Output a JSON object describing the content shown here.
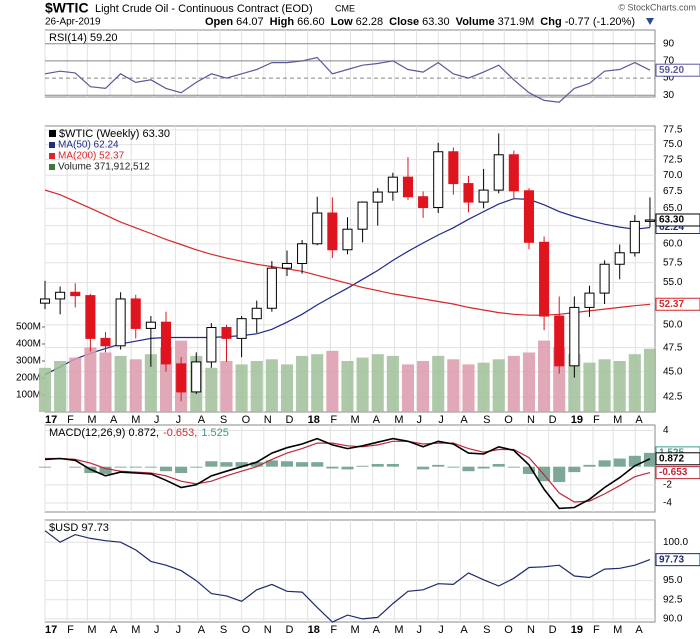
{
  "header": {
    "symbol": "$WTIC",
    "name": "Light Crude Oil - Continuous Contract (EOD)",
    "exchange": "CME",
    "date": "26-Apr-2019",
    "quote": [
      {
        "label": "Open",
        "value": "64.07"
      },
      {
        "label": "High",
        "value": "66.60"
      },
      {
        "label": "Low",
        "value": "62.28"
      },
      {
        "label": "Close",
        "value": "63.30"
      },
      {
        "label": "Volume",
        "value": "371.9M"
      },
      {
        "label": "Chg",
        "value": "-0.77 (-1.20%)"
      }
    ],
    "credit": "© StockCharts.com"
  },
  "chart_data": [
    {
      "type": "line",
      "legend": [
        {
          "text": "RSI(14) 59.20",
          "color": "#000000"
        }
      ],
      "x": [
        0,
        3,
        6,
        9,
        12,
        15,
        18,
        21,
        24,
        27,
        30,
        33,
        36,
        39,
        42,
        45,
        48,
        51,
        54,
        57,
        60,
        63,
        66,
        69,
        72,
        75,
        78,
        81,
        84,
        87,
        90,
        93,
        96,
        99,
        102,
        105,
        108,
        111,
        114,
        117,
        120
      ],
      "xlim": [
        0,
        121
      ],
      "ylim": [
        28,
        106
      ],
      "yticks": [
        90,
        70,
        50,
        30
      ],
      "series": [
        {
          "name": "RSI(14)",
          "color": "#5a5a9a",
          "last_label": "59.20",
          "values": [
            55,
            58,
            56,
            40,
            38,
            55,
            45,
            48,
            38,
            33,
            45,
            55,
            50,
            55,
            60,
            68,
            68,
            70,
            74,
            55,
            60,
            65,
            67,
            70,
            60,
            57,
            68,
            55,
            50,
            57,
            65,
            48,
            33,
            24,
            22,
            38,
            44,
            58,
            60,
            68,
            59.2
          ]
        }
      ]
    },
    {
      "type": "candlestick",
      "log": true,
      "x": [
        0,
        3,
        6,
        9,
        12,
        15,
        18,
        21,
        24,
        27,
        30,
        33,
        36,
        39,
        42,
        45,
        48,
        51,
        54,
        57,
        60,
        63,
        66,
        69,
        72,
        75,
        78,
        81,
        84,
        87,
        90,
        93,
        96,
        99,
        102,
        105,
        108,
        111,
        114,
        117,
        120
      ],
      "xlim": [
        0,
        121
      ],
      "ylim": [
        41.1,
        78.2
      ],
      "yticks": [
        42.5,
        {
          "value": 45,
          "label": "45.0"
        },
        47.5,
        {
          "value": 50,
          "label": "50.0"
        },
        52.5,
        {
          "value": 55,
          "label": "55.0"
        },
        57.5,
        {
          "value": 60,
          "label": "60.0"
        },
        62.5,
        {
          "value": 65,
          "label": "65.0"
        },
        67.5,
        {
          "value": 70,
          "label": "70.0"
        },
        72.5,
        {
          "value": 75,
          "label": "75.0"
        },
        77.5
      ],
      "y2lim": [
        0,
        1682000000
      ],
      "y2ticks": [
        {
          "value": 100000000,
          "label": "100M"
        },
        {
          "value": 200000000,
          "label": "200M"
        },
        {
          "value": 300000000,
          "label": "300M"
        },
        {
          "value": 400000000,
          "label": "400M"
        },
        {
          "value": 500000000,
          "label": "500M"
        }
      ],
      "xticks": [
        {
          "value": 0,
          "label": "17"
        },
        {
          "value": 4.4,
          "label": "F"
        },
        {
          "value": 8.4,
          "label": "M"
        },
        {
          "value": 12.9,
          "label": "A"
        },
        {
          "value": 17.1,
          "label": "M"
        },
        {
          "value": 21.6,
          "label": "J"
        },
        {
          "value": 25.9,
          "label": "J"
        },
        {
          "value": 30.3,
          "label": "A"
        },
        {
          "value": 34.7,
          "label": "S"
        },
        {
          "value": 39,
          "label": "O"
        },
        {
          "value": 43.4,
          "label": "N"
        },
        {
          "value": 47.7,
          "label": "D"
        },
        {
          "value": 52.1,
          "label": "18"
        },
        {
          "value": 56.6,
          "label": "F"
        },
        {
          "value": 60.6,
          "label": "M"
        },
        {
          "value": 65,
          "label": "A"
        },
        {
          "value": 69.3,
          "label": "M"
        },
        {
          "value": 73.7,
          "label": "J"
        },
        {
          "value": 78,
          "label": "J"
        },
        {
          "value": 82.4,
          "label": "A"
        },
        {
          "value": 86.9,
          "label": "S"
        },
        {
          "value": 91.1,
          "label": "O"
        },
        {
          "value": 95.6,
          "label": "N"
        },
        {
          "value": 99.9,
          "label": "D"
        },
        {
          "value": 104.3,
          "label": "19"
        },
        {
          "value": 108.7,
          "label": "F"
        },
        {
          "value": 112.7,
          "label": "M"
        },
        {
          "value": 117.1,
          "label": "A"
        }
      ],
      "candles": {
        "name": "$WTIC (Weekly) 63.30",
        "up_color": "#000000",
        "down_color": "#e0141e",
        "last_label": "63.30",
        "open": [
          52.5,
          53.0,
          53.8,
          53.4,
          48.5,
          47.7,
          53.0,
          49.6,
          50.3,
          45.8,
          43.0,
          46.0,
          49.7,
          48.5,
          50.7,
          51.9,
          56.8,
          57.4,
          60.0,
          64.3,
          59.2,
          62.0,
          65.9,
          67.4,
          69.7,
          66.7,
          65.1,
          73.8,
          68.7,
          65.9,
          67.7,
          73.3,
          67.6,
          60.2,
          51.0,
          45.6,
          52.0,
          53.7,
          57.3,
          58.8,
          63.1
        ],
        "high": [
          55.2,
          54.5,
          54.9,
          53.6,
          49.2,
          53.8,
          53.5,
          51.0,
          51.5,
          46.5,
          47.0,
          50.2,
          50.0,
          51.0,
          52.8,
          57.7,
          59.1,
          60.5,
          66.7,
          66.6,
          63.7,
          66.0,
          68.0,
          70.4,
          72.9,
          67.5,
          75.3,
          74.5,
          69.9,
          71.0,
          76.9,
          74.0,
          68.0,
          61.0,
          53.3,
          53.3,
          54.6,
          57.8,
          59.9,
          64.0,
          66.6
        ],
        "low": [
          51.8,
          51.2,
          52.0,
          47.1,
          47.0,
          47.3,
          48.5,
          45.5,
          45.0,
          42.1,
          42.8,
          45.4,
          46.0,
          46.5,
          49.1,
          51.5,
          55.8,
          56.1,
          59.8,
          58.1,
          58.6,
          60.2,
          62.5,
          66.1,
          66.2,
          63.6,
          64.3,
          67.0,
          64.4,
          65.0,
          67.2,
          66.3,
          59.3,
          49.4,
          44.8,
          44.4,
          50.9,
          52.4,
          55.4,
          58.3,
          62.3
        ],
        "close": [
          53.0,
          53.8,
          53.4,
          48.5,
          47.7,
          53.0,
          49.6,
          50.3,
          45.8,
          43.0,
          46.0,
          49.7,
          48.5,
          50.7,
          51.9,
          56.8,
          57.4,
          60.0,
          64.3,
          59.2,
          62.0,
          65.9,
          67.4,
          69.7,
          66.7,
          65.1,
          73.8,
          68.7,
          65.9,
          67.7,
          73.3,
          67.6,
          60.2,
          51.0,
          45.6,
          52.0,
          53.7,
          57.3,
          58.8,
          63.1,
          63.3
        ]
      },
      "series": [
        {
          "name": "MA(50) 62.24",
          "color": "#1f2a8a",
          "last_label": "62.24",
          "values": [
            44.7,
            45.5,
            46.3,
            46.9,
            47.4,
            47.9,
            48.2,
            48.5,
            48.6,
            48.6,
            48.6,
            48.6,
            48.7,
            48.8,
            49.0,
            49.5,
            50.3,
            51.2,
            52.3,
            53.3,
            54.3,
            55.4,
            56.5,
            57.8,
            59.0,
            60.1,
            61.2,
            62.2,
            63.4,
            64.5,
            65.6,
            66.4,
            66.3,
            65.5,
            64.5,
            63.8,
            63.2,
            62.7,
            62.3,
            62.0,
            62.24
          ]
        },
        {
          "name": "MA(200) 52.37",
          "color": "#d8262a",
          "last_label": "52.37",
          "values": [
            67.7,
            67.0,
            66.0,
            65.0,
            64.0,
            63.0,
            62.2,
            61.4,
            60.6,
            59.9,
            59.2,
            58.6,
            58.1,
            57.7,
            57.3,
            57.0,
            56.7,
            56.4,
            55.9,
            55.4,
            54.9,
            54.4,
            54.0,
            53.6,
            53.3,
            53.0,
            52.7,
            52.4,
            52.0,
            51.7,
            51.4,
            51.2,
            51.1,
            51.1,
            51.2,
            51.4,
            51.6,
            51.8,
            52.0,
            52.2,
            52.37
          ]
        },
        {
          "name": "Volume 371,912,512",
          "color": "#3a7a3a",
          "style": "bar",
          "axis": "y2",
          "up_color": "#9fbf98",
          "down_color": "#dc9aab",
          "values": [
            260000000,
            300000000,
            320000000,
            380000000,
            350000000,
            330000000,
            310000000,
            340000000,
            380000000,
            420000000,
            330000000,
            260000000,
            300000000,
            280000000,
            300000000,
            310000000,
            280000000,
            330000000,
            340000000,
            360000000,
            300000000,
            320000000,
            340000000,
            330000000,
            280000000,
            300000000,
            330000000,
            310000000,
            280000000,
            290000000,
            310000000,
            330000000,
            350000000,
            420000000,
            380000000,
            340000000,
            290000000,
            310000000,
            300000000,
            340000000,
            371912512
          ]
        }
      ]
    },
    {
      "type": "line",
      "legend": [
        {
          "text": "MACD(12,26,9) 0.872,",
          "color": "#000000"
        },
        {
          "text": "-0.653,",
          "color": "#d8262a"
        },
        {
          "text": "1.525",
          "color": "#3f9a8a"
        }
      ],
      "x": [
        0,
        3,
        6,
        9,
        12,
        15,
        18,
        21,
        24,
        27,
        30,
        33,
        36,
        39,
        42,
        45,
        48,
        51,
        54,
        57,
        60,
        63,
        66,
        69,
        72,
        75,
        78,
        81,
        84,
        87,
        90,
        93,
        96,
        99,
        102,
        105,
        108,
        111,
        114,
        117,
        120
      ],
      "xlim": [
        0,
        121
      ],
      "ylim": [
        -5,
        4.6
      ],
      "yticks": [
        4,
        -2,
        -4
      ],
      "series": [
        {
          "name": "Histogram",
          "color": "#6f9f8c",
          "style": "bar",
          "last_label": "1.525",
          "values": [
            -0.1,
            0,
            -0.1,
            -0.7,
            -0.8,
            -0.1,
            -0.1,
            -0.1,
            -0.5,
            -0.7,
            -0.1,
            0.6,
            0.5,
            0.5,
            0.5,
            0.7,
            0.6,
            0.5,
            0.5,
            -0.2,
            -0.3,
            0.1,
            0.3,
            0.3,
            0,
            -0.3,
            0.2,
            -0.1,
            -0.5,
            -0.2,
            0.3,
            -0.1,
            -0.8,
            -1.6,
            -1.7,
            -0.6,
            0.2,
            0.7,
            0.9,
            1.2,
            1.525
          ]
        },
        {
          "name": "Signal",
          "color": "#c0283a",
          "last_label": "-0.653",
          "values": [
            0.9,
            0.9,
            0.8,
            0.4,
            -0.2,
            -0.5,
            -0.6,
            -0.7,
            -1.0,
            -1.6,
            -1.9,
            -1.6,
            -1.0,
            -0.5,
            0.0,
            0.8,
            1.5,
            2.0,
            2.6,
            2.6,
            2.3,
            2.2,
            2.4,
            2.8,
            2.8,
            2.5,
            2.6,
            2.6,
            2.0,
            1.6,
            1.9,
            1.9,
            1.0,
            -0.9,
            -2.9,
            -3.9,
            -3.8,
            -3.0,
            -2.1,
            -1.1,
            -0.653
          ]
        },
        {
          "name": "MACD",
          "color": "#000000",
          "last_label": "0.872",
          "values": [
            0.8,
            0.9,
            0.7,
            -0.3,
            -1.0,
            -0.6,
            -0.7,
            -0.8,
            -1.5,
            -2.3,
            -2.0,
            -1.0,
            -0.5,
            0.0,
            0.5,
            1.5,
            2.1,
            2.5,
            3.1,
            2.4,
            2.0,
            2.3,
            2.7,
            3.1,
            2.8,
            2.2,
            2.8,
            2.5,
            1.5,
            1.4,
            2.2,
            1.8,
            0.2,
            -2.5,
            -4.6,
            -4.5,
            -3.6,
            -2.3,
            -1.2,
            0.1,
            0.872
          ]
        }
      ]
    },
    {
      "type": "line",
      "legend": [
        {
          "text": "$USD 97.73",
          "color": "#000000"
        }
      ],
      "x": [
        0,
        3,
        6,
        9,
        12,
        15,
        18,
        21,
        24,
        27,
        30,
        33,
        36,
        39,
        42,
        45,
        48,
        51,
        54,
        57,
        60,
        63,
        66,
        69,
        72,
        75,
        78,
        81,
        84,
        87,
        90,
        93,
        96,
        99,
        102,
        105,
        108,
        111,
        114,
        117,
        120
      ],
      "xlim": [
        0,
        121
      ],
      "ylim": [
        89.6,
        102.9
      ],
      "yticks": [
        {
          "value": 100,
          "label": "100.0"
        },
        {
          "value": 95,
          "label": "95.0"
        },
        92.5,
        {
          "value": 90,
          "label": "90.0"
        }
      ],
      "xticks": [
        {
          "value": 0,
          "label": "17"
        },
        {
          "value": 4.4,
          "label": "F"
        },
        {
          "value": 8.4,
          "label": "M"
        },
        {
          "value": 12.9,
          "label": "A"
        },
        {
          "value": 17.1,
          "label": "M"
        },
        {
          "value": 21.6,
          "label": "J"
        },
        {
          "value": 25.9,
          "label": "J"
        },
        {
          "value": 30.3,
          "label": "A"
        },
        {
          "value": 34.7,
          "label": "S"
        },
        {
          "value": 39,
          "label": "O"
        },
        {
          "value": 43.4,
          "label": "N"
        },
        {
          "value": 47.7,
          "label": "D"
        },
        {
          "value": 52.1,
          "label": "18"
        },
        {
          "value": 56.6,
          "label": "F"
        },
        {
          "value": 60.6,
          "label": "M"
        },
        {
          "value": 65,
          "label": "A"
        },
        {
          "value": 69.3,
          "label": "M"
        },
        {
          "value": 73.7,
          "label": "J"
        },
        {
          "value": 78,
          "label": "J"
        },
        {
          "value": 82.4,
          "label": "A"
        },
        {
          "value": 86.9,
          "label": "S"
        },
        {
          "value": 91.1,
          "label": "O"
        },
        {
          "value": 95.6,
          "label": "N"
        },
        {
          "value": 99.9,
          "label": "D"
        },
        {
          "value": 104.3,
          "label": "19"
        },
        {
          "value": 108.7,
          "label": "F"
        },
        {
          "value": 112.7,
          "label": "M"
        },
        {
          "value": 117.1,
          "label": "A"
        }
      ],
      "series": [
        {
          "name": "$USD",
          "color": "#1c2a6a",
          "last_label": "97.73",
          "values": [
            101.5,
            100.0,
            101.0,
            100.5,
            100.2,
            100.0,
            99.0,
            97.5,
            97.0,
            96.3,
            95.0,
            93.3,
            93.0,
            92.3,
            93.8,
            94.5,
            93.6,
            93.5,
            91.5,
            89.6,
            90.5,
            90.0,
            90.2,
            92.0,
            93.6,
            93.8,
            94.6,
            94.5,
            96.0,
            95.1,
            94.3,
            95.3,
            96.7,
            96.8,
            97.0,
            95.6,
            95.4,
            96.5,
            96.6,
            97.0,
            97.73
          ]
        }
      ]
    }
  ]
}
